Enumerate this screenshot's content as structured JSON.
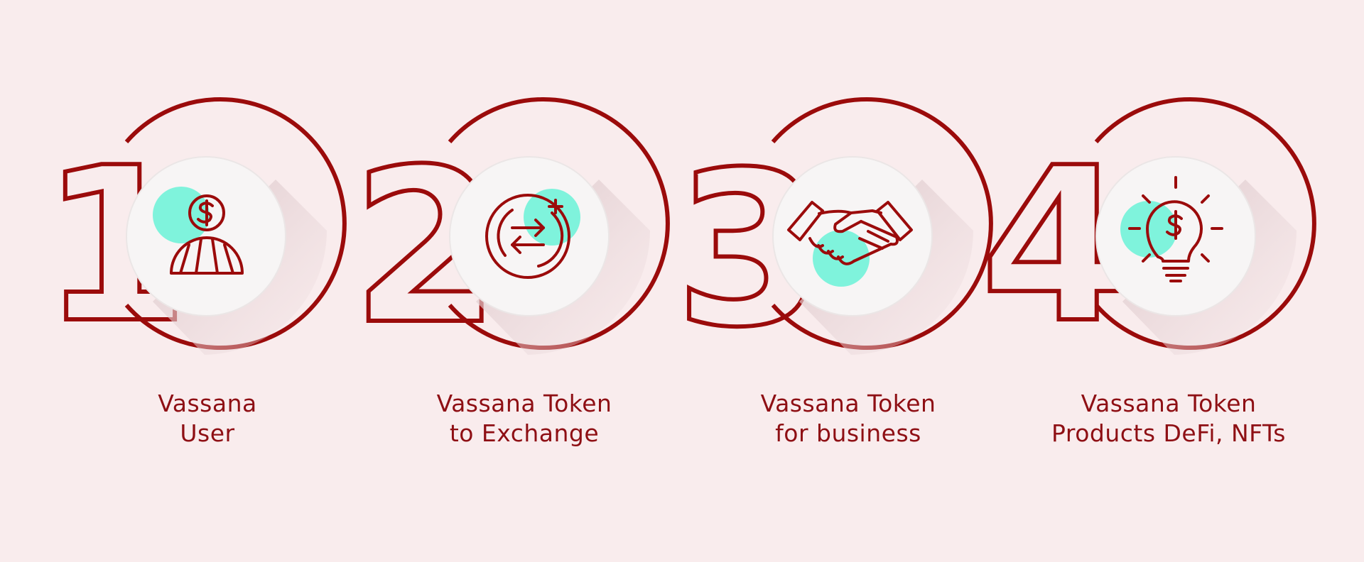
{
  "colors": {
    "background": "#f9eced",
    "accent": "#9b0b0b",
    "mint": "#7ff3dc",
    "disc": "#f7f5f5",
    "text": "#8e0f14"
  },
  "steps": [
    {
      "number": "1",
      "icon": "user-dollar-icon",
      "caption_line1": "Vassana",
      "caption_line2": "User"
    },
    {
      "number": "2",
      "icon": "exchange-arrows-icon",
      "caption_line1": "Vassana Token",
      "caption_line2": "to Exchange"
    },
    {
      "number": "3",
      "icon": "handshake-icon",
      "caption_line1": "Vassana Token",
      "caption_line2": "for business"
    },
    {
      "number": "4",
      "icon": "lightbulb-dollar-icon",
      "caption_line1": "Vassana Token",
      "caption_line2": "Products DeFi, NFTs"
    }
  ]
}
